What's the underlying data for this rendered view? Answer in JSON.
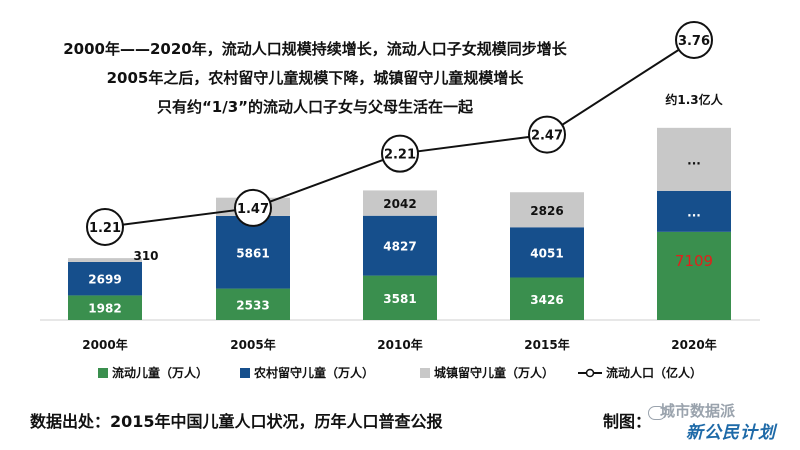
{
  "titles": [
    "2000年——2020年，流动人口规模持续增长，流动人口子女规模同步增长",
    "2005年之后，农村留守儿童规模下降，城镇留守儿童规模增长",
    "只有约“1/3”的流动人口子女与父母生活在一起"
  ],
  "chart_data": {
    "type": "bar",
    "stacked": true,
    "categories": [
      "2000年",
      "2005年",
      "2010年",
      "2015年",
      "2020年"
    ],
    "series": [
      {
        "name": "流动儿童（万人）",
        "values": [
          1982,
          2533,
          3581,
          3426,
          7109
        ],
        "labels": [
          "1982",
          "2533",
          "3581",
          "3426",
          "7109"
        ],
        "color": "#3a8f4e"
      },
      {
        "name": "农村留守儿童（万人）",
        "values": [
          2699,
          5861,
          4827,
          4051,
          null
        ],
        "labels": [
          "2699",
          "5861",
          "4827",
          "4051",
          "..."
        ],
        "color": "#164f8c"
      },
      {
        "name": "城镇留守儿童（万人）",
        "values": [
          310,
          1470,
          2042,
          2826,
          null
        ],
        "labels": [
          "310",
          "1470",
          "2042",
          "2826",
          "..."
        ],
        "color": "#c8c8c8"
      }
    ],
    "line_series": {
      "name": "流动人口（亿人）",
      "values": [
        1.21,
        1.47,
        2.21,
        2.47,
        3.76
      ],
      "labels": [
        "1.21",
        "1.47",
        "2.21",
        "2.47",
        "3.76"
      ]
    },
    "annotation": "约1.3亿人",
    "highlight_color": "#e0201b"
  },
  "source_text": "数据出处：2015年中国儿童人口状况，历年人口普查公报",
  "maker_text": "制图：",
  "watermark_text": "城市数据派",
  "logo_text": "新公民计划"
}
